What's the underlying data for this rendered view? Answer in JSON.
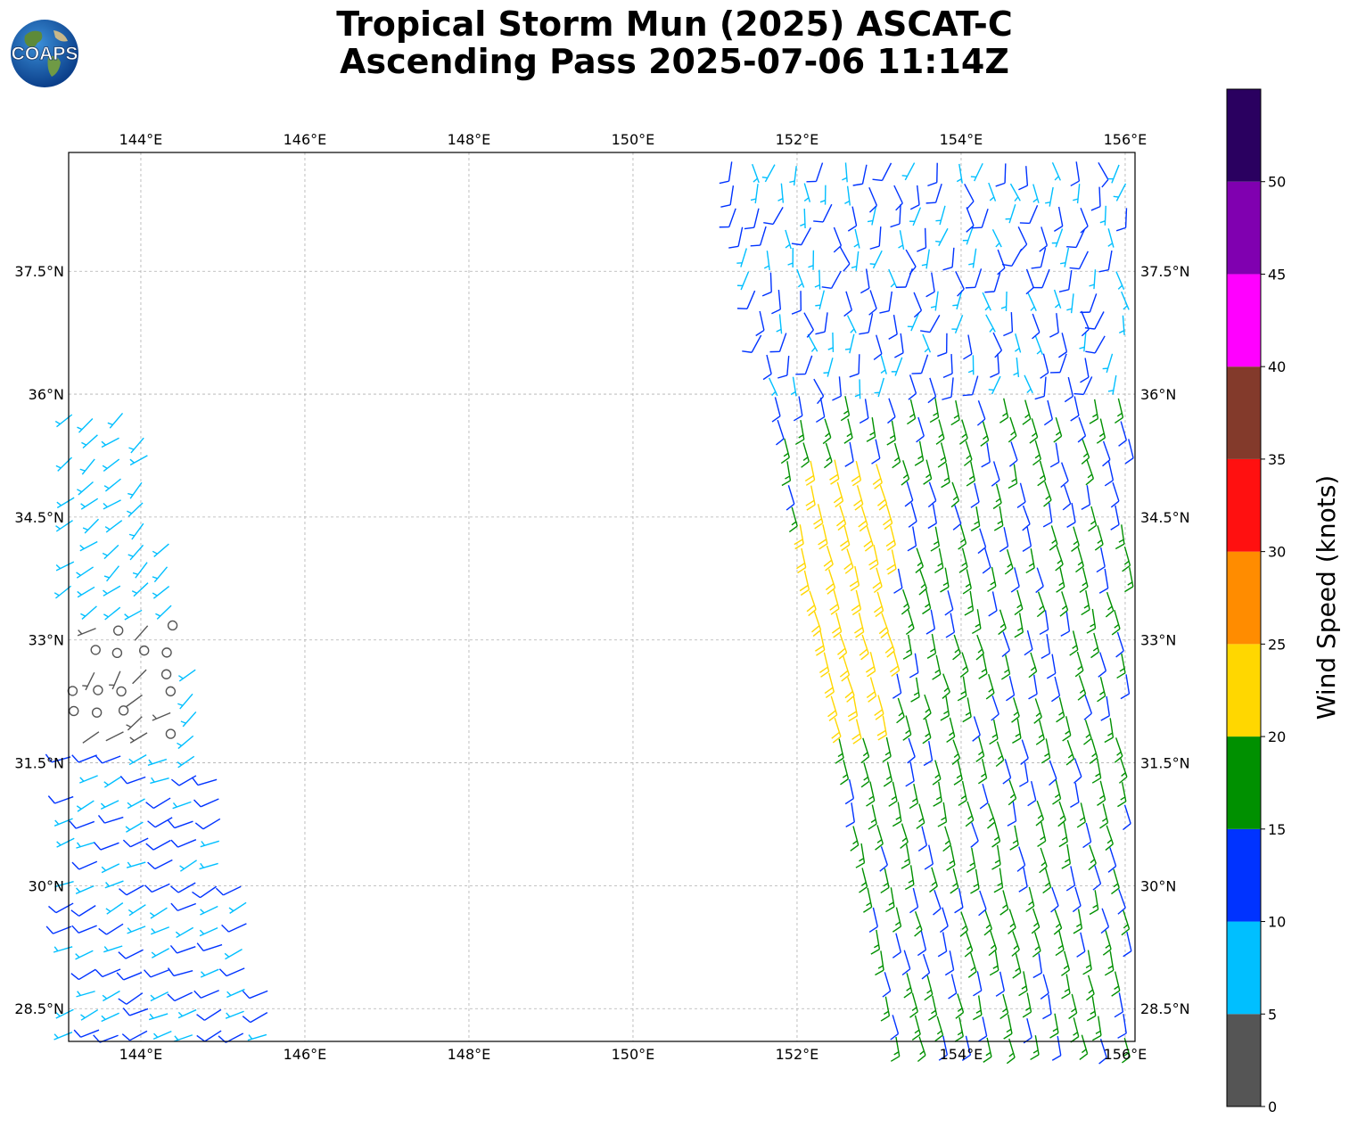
{
  "title": {
    "line1": "Tropical Storm Mun (2025) ASCAT-C",
    "line2": "Ascending Pass 2025-07-06 11:14Z"
  },
  "logo": {
    "text": "COAPS",
    "icon": "globe-logo-icon"
  },
  "map": {
    "lon_range": [
      143.12,
      156.12
    ],
    "lat_range": [
      28.1,
      38.95
    ],
    "lon_ticks": [
      "144°E",
      "146°E",
      "148°E",
      "150°E",
      "152°E",
      "154°E",
      "156°E"
    ],
    "lon_values": [
      144,
      146,
      148,
      150,
      152,
      154,
      156
    ],
    "lat_ticks": [
      "28.5°N",
      "30°N",
      "31.5°N",
      "33°N",
      "34.5°N",
      "36°N",
      "37.5°N"
    ],
    "lat_values": [
      28.5,
      30,
      31.5,
      33,
      34.5,
      36,
      37.5
    ],
    "grid": true
  },
  "colorbar": {
    "label": "Wind Speed (knots)",
    "ticks": [
      "0",
      "5",
      "10",
      "15",
      "20",
      "25",
      "30",
      "35",
      "40",
      "45",
      "50"
    ],
    "bins": [
      {
        "min": 0,
        "max": 5,
        "color": "#555555"
      },
      {
        "min": 5,
        "max": 10,
        "color": "#00bfff"
      },
      {
        "min": 10,
        "max": 15,
        "color": "#0033ff"
      },
      {
        "min": 15,
        "max": 20,
        "color": "#009000"
      },
      {
        "min": 20,
        "max": 25,
        "color": "#ffd700"
      },
      {
        "min": 25,
        "max": 30,
        "color": "#ff8c00"
      },
      {
        "min": 30,
        "max": 35,
        "color": "#ff1010"
      },
      {
        "min": 35,
        "max": 40,
        "color": "#833a2b"
      },
      {
        "min": 40,
        "max": 45,
        "color": "#ff00ff"
      },
      {
        "min": 45,
        "max": 50,
        "color": "#8000b0"
      },
      {
        "min": 50,
        "max": 55,
        "color": "#2a0060"
      }
    ]
  },
  "wind_regions": [
    {
      "region": "west-swath-north",
      "lon": [
        143.1,
        144.6
      ],
      "lat": [
        33.2,
        35.9
      ],
      "speed_kt": [
        5,
        10
      ],
      "color": "#00bfff"
    },
    {
      "region": "west-swath-calm",
      "lon": [
        143.1,
        144.5
      ],
      "lat": [
        31.6,
        33.2
      ],
      "speed_kt": [
        0,
        5
      ],
      "color": "#555555"
    },
    {
      "region": "west-swath-south",
      "lon": [
        143.1,
        145.6
      ],
      "lat": [
        28.1,
        31.6
      ],
      "speed_kt": [
        5,
        15
      ],
      "color": "#00bfff"
    },
    {
      "region": "east-swath-north",
      "lon": [
        151.1,
        156.1
      ],
      "lat": [
        36.0,
        38.95
      ],
      "speed_kt": [
        5,
        15
      ],
      "color": "#00bfff"
    },
    {
      "region": "east-swath-south",
      "lon": [
        151.9,
        156.1
      ],
      "lat": [
        28.1,
        36.0
      ],
      "speed_kt": [
        15,
        20
      ],
      "color": "#009000"
    },
    {
      "region": "east-swath-strong",
      "lon": [
        152.0,
        153.2
      ],
      "lat": [
        31.8,
        35.2
      ],
      "speed_kt": [
        20,
        25
      ],
      "color": "#ffd700"
    }
  ]
}
